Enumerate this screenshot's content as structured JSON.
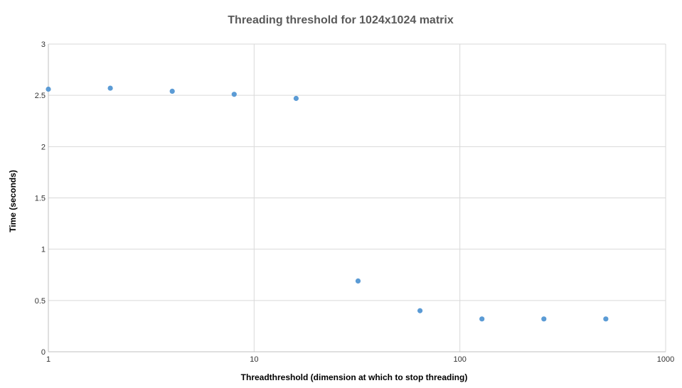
{
  "chart_data": {
    "type": "scatter",
    "title": "Threading threshold for 1024x1024 matrix",
    "xlabel": "Threadthreshold (dimension at which to stop threading)",
    "ylabel": "Time (seconds)",
    "x_scale": "log",
    "xlim": [
      1,
      1000
    ],
    "ylim": [
      0,
      3
    ],
    "x_ticks": [
      1,
      10,
      100,
      1000
    ],
    "x_tick_labels": [
      "1",
      "10",
      "100",
      "1000"
    ],
    "y_ticks": [
      0,
      0.5,
      1,
      1.5,
      2,
      2.5,
      3
    ],
    "y_tick_labels": [
      "0",
      "0.5",
      "1",
      "1.5",
      "2",
      "2.5",
      "3"
    ],
    "grid": true,
    "legend": "none",
    "marker_color": "#5b9bd5",
    "series": [
      {
        "x": [
          1,
          2,
          4,
          8,
          16,
          32,
          64,
          128,
          256,
          512
        ],
        "y": [
          2.56,
          2.57,
          2.54,
          2.51,
          2.47,
          0.69,
          0.4,
          0.32,
          0.32,
          0.32
        ]
      }
    ]
  }
}
